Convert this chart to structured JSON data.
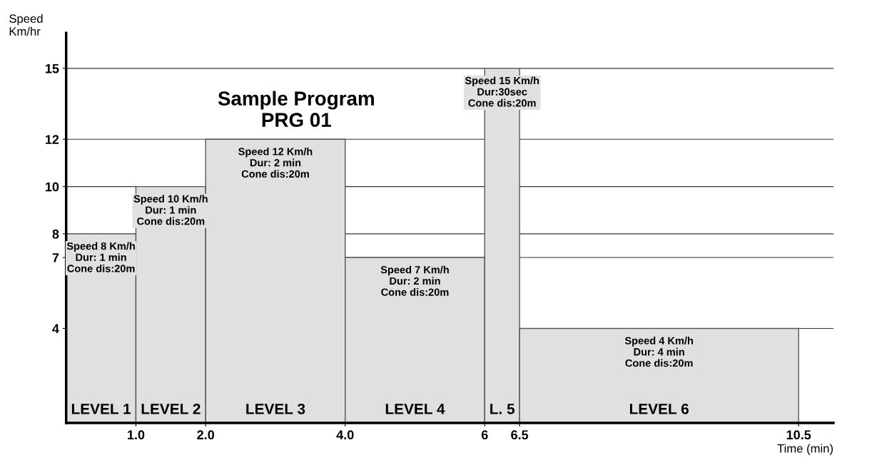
{
  "chart_data": {
    "type": "histogram",
    "title": "Sample Program\nPRG 01",
    "xlabel": "Time (min)",
    "ylabel": "Speed\nKm/hr",
    "bins": [
      0,
      1,
      2,
      4,
      6,
      6.5,
      10.5
    ],
    "values": [
      8,
      10,
      12,
      7,
      15,
      4
    ],
    "color": "#e0e0e0",
    "xlim": [
      0,
      11
    ],
    "ylim": [
      0,
      16.5
    ],
    "xticks": [
      {
        "value": 1,
        "label": "1.0"
      },
      {
        "value": 2,
        "label": "2.0"
      },
      {
        "value": 4,
        "label": "4.0"
      },
      6,
      6.5,
      10.5
    ],
    "yticks": [
      4,
      7,
      8,
      10,
      12,
      15
    ],
    "grid": "y",
    "annotations": [
      "LEVEL 1",
      "LEVEL 2",
      "LEVEL 3",
      "LEVEL 4",
      "L. 5",
      "LEVEL 6",
      {
        "text": "Speed 8 Km/h\nDur: 1 min\nCone dis:20m",
        "x": 0.5,
        "y": 8
      },
      {
        "text": "Speed 10 Km/h\nDur: 1 min\nCone dis:20m",
        "x": 1.5,
        "y": 10
      },
      {
        "text": "Speed 12 Km/h\nDur: 2 min\nCone dis:20m",
        "x": 3,
        "y": 12
      },
      {
        "text": "Speed 7 Km/h\nDur: 2 min\nCone dis:20m",
        "x": 5,
        "y": 7
      },
      {
        "text": "Speed 15 Km/h\nDur:30sec\nCone dis:20m",
        "x": 6.25,
        "y": 15
      },
      {
        "text": "Speed 4 Km/h\nDur: 4 min\nCone dis:20m",
        "x": 8.5,
        "y": 4
      }
    ]
  }
}
